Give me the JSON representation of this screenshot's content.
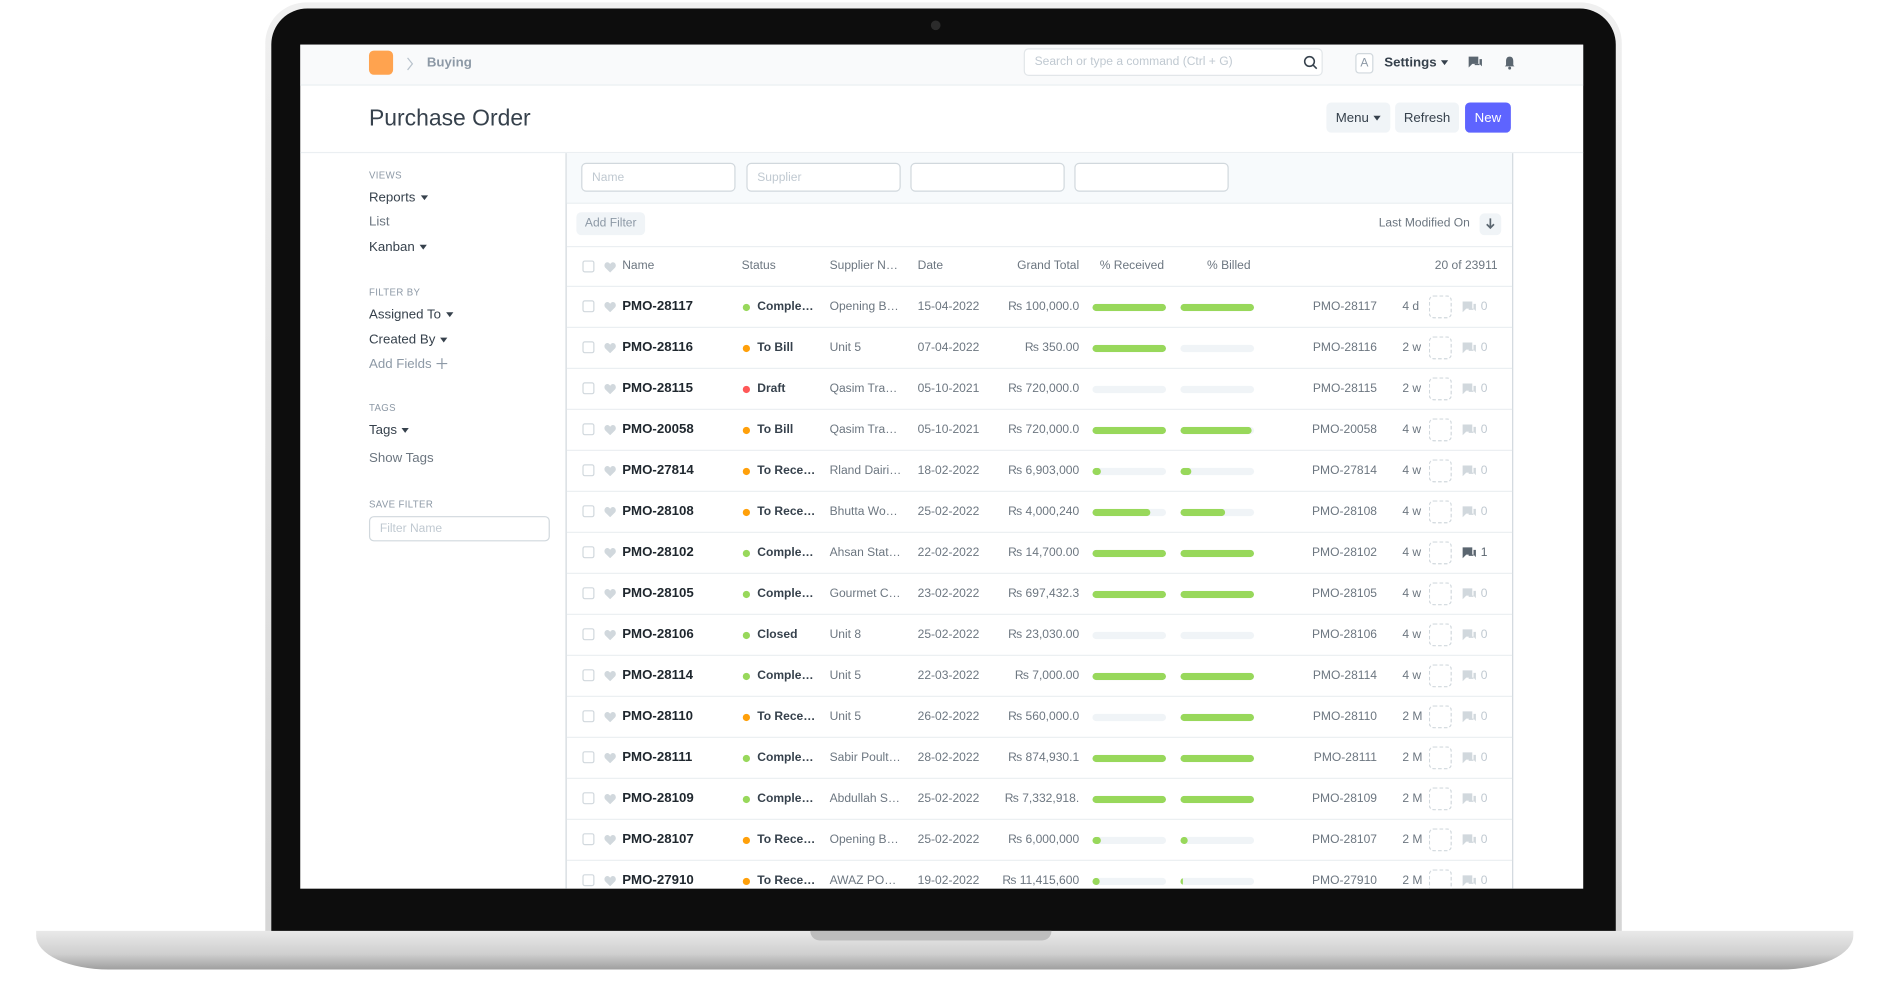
{
  "navbar": {
    "breadcrumb": "Buying",
    "search_placeholder": "Search or type a command (Ctrl + G)",
    "avatar": "A",
    "settings": "Settings"
  },
  "header": {
    "title": "Purchase Order",
    "buttons": [
      "Menu",
      "Refresh",
      "New"
    ]
  },
  "sidebar": {
    "views_label": "VIEWS",
    "views": [
      "Reports",
      "List",
      "Kanban"
    ],
    "filter_label": "FILTER BY",
    "filters": [
      "Assigned To",
      "Created By",
      "Add Fields"
    ],
    "tags_label": "TAGS",
    "tags": [
      "Tags",
      "Show Tags"
    ],
    "save_label": "SAVE FILTER",
    "save_placeholder": "Filter Name"
  },
  "filters": {
    "placeholders": [
      "Name",
      "Supplier"
    ],
    "add_filter": "Add Filter",
    "sort": "Last Modified On"
  },
  "table": {
    "columns": [
      "Name",
      "Status",
      "Supplier N…",
      "Date",
      "Grand Total",
      "% Received",
      "% Billed"
    ],
    "count": "20 of 23911",
    "rows": [
      {
        "name": "PMO-28117",
        "status": "Comple…",
        "status_color": "#98d85b",
        "supplier": "Opening B…",
        "date": "15-04-2022",
        "total": "₨ 100,000.0",
        "received": 100,
        "billed": 100,
        "id": "PMO-28117",
        "modified": "4 d",
        "comments": 0
      },
      {
        "name": "PMO-28116",
        "status": "To Bill",
        "status_color": "#ffa00a",
        "supplier": "Unit 5",
        "date": "07-04-2022",
        "total": "₨ 350.00",
        "received": 100,
        "billed": 0,
        "id": "PMO-28116",
        "modified": "2 w",
        "comments": 0
      },
      {
        "name": "PMO-28115",
        "status": "Draft",
        "status_color": "#ff5858",
        "supplier": "Qasim Tra…",
        "date": "05-10-2021",
        "total": "₨ 720,000.0",
        "received": 0,
        "billed": 0,
        "id": "PMO-28115",
        "modified": "2 w",
        "comments": 0
      },
      {
        "name": "PMO-20058",
        "status": "To Bill",
        "status_color": "#ffa00a",
        "supplier": "Qasim Tra…",
        "date": "05-10-2021",
        "total": "₨ 720,000.0",
        "received": 100,
        "billed": 97,
        "id": "PMO-20058",
        "modified": "4 w",
        "comments": 0
      },
      {
        "name": "PMO-27814",
        "status": "To Rece…",
        "status_color": "#ffa00a",
        "supplier": "Rland Dairi…",
        "date": "18-02-2022",
        "total": "₨ 6,903,000",
        "received": 12,
        "billed": 15,
        "id": "PMO-27814",
        "modified": "4 w",
        "comments": 0
      },
      {
        "name": "PMO-28108",
        "status": "To Rece…",
        "status_color": "#ffa00a",
        "supplier": "Bhutta Wo…",
        "date": "25-02-2022",
        "total": "₨ 4,000,240",
        "received": 78,
        "billed": 60,
        "id": "PMO-28108",
        "modified": "4 w",
        "comments": 0
      },
      {
        "name": "PMO-28102",
        "status": "Comple…",
        "status_color": "#98d85b",
        "supplier": "Ahsan Stat…",
        "date": "22-02-2022",
        "total": "₨ 14,700.00",
        "received": 100,
        "billed": 100,
        "id": "PMO-28102",
        "modified": "4 w",
        "comments": 1
      },
      {
        "name": "PMO-28105",
        "status": "Comple…",
        "status_color": "#98d85b",
        "supplier": "Gourmet C…",
        "date": "23-02-2022",
        "total": "₨ 697,432.3",
        "received": 100,
        "billed": 100,
        "id": "PMO-28105",
        "modified": "4 w",
        "comments": 0
      },
      {
        "name": "PMO-28106",
        "status": "Closed",
        "status_color": "#98d85b",
        "supplier": "Unit 8",
        "date": "25-02-2022",
        "total": "₨ 23,030.00",
        "received": 0,
        "billed": 0,
        "id": "PMO-28106",
        "modified": "4 w",
        "comments": 0
      },
      {
        "name": "PMO-28114",
        "status": "Comple…",
        "status_color": "#98d85b",
        "supplier": "Unit 5",
        "date": "22-03-2022",
        "total": "₨ 7,000.00",
        "received": 100,
        "billed": 100,
        "id": "PMO-28114",
        "modified": "4 w",
        "comments": 0
      },
      {
        "name": "PMO-28110",
        "status": "To Rece…",
        "status_color": "#ffa00a",
        "supplier": "Unit 5",
        "date": "26-02-2022",
        "total": "₨ 560,000.0",
        "received": 0,
        "billed": 100,
        "id": "PMO-28110",
        "modified": "2 M",
        "comments": 0
      },
      {
        "name": "PMO-28111",
        "status": "Comple…",
        "status_color": "#98d85b",
        "supplier": "Sabir Poult…",
        "date": "28-02-2022",
        "total": "₨ 874,930.1",
        "received": 100,
        "billed": 100,
        "id": "PMO-28111",
        "modified": "2 M",
        "comments": 0
      },
      {
        "name": "PMO-28109",
        "status": "Comple…",
        "status_color": "#98d85b",
        "supplier": "Abdullah S…",
        "date": "25-02-2022",
        "total": "₨ 7,332,918.",
        "received": 100,
        "billed": 100,
        "id": "PMO-28109",
        "modified": "2 M",
        "comments": 0
      },
      {
        "name": "PMO-28107",
        "status": "To Rece…",
        "status_color": "#ffa00a",
        "supplier": "Opening B…",
        "date": "25-02-2022",
        "total": "₨ 6,000,000",
        "received": 12,
        "billed": 10,
        "id": "PMO-28107",
        "modified": "2 M",
        "comments": 0
      },
      {
        "name": "PMO-27910",
        "status": "To Rece…",
        "status_color": "#ffa00a",
        "supplier": "AWAZ PO…",
        "date": "19-02-2022",
        "total": "₨ 11,415,600",
        "received": 10,
        "billed": 3,
        "id": "PMO-27910",
        "modified": "2 M",
        "comments": 0
      }
    ]
  }
}
